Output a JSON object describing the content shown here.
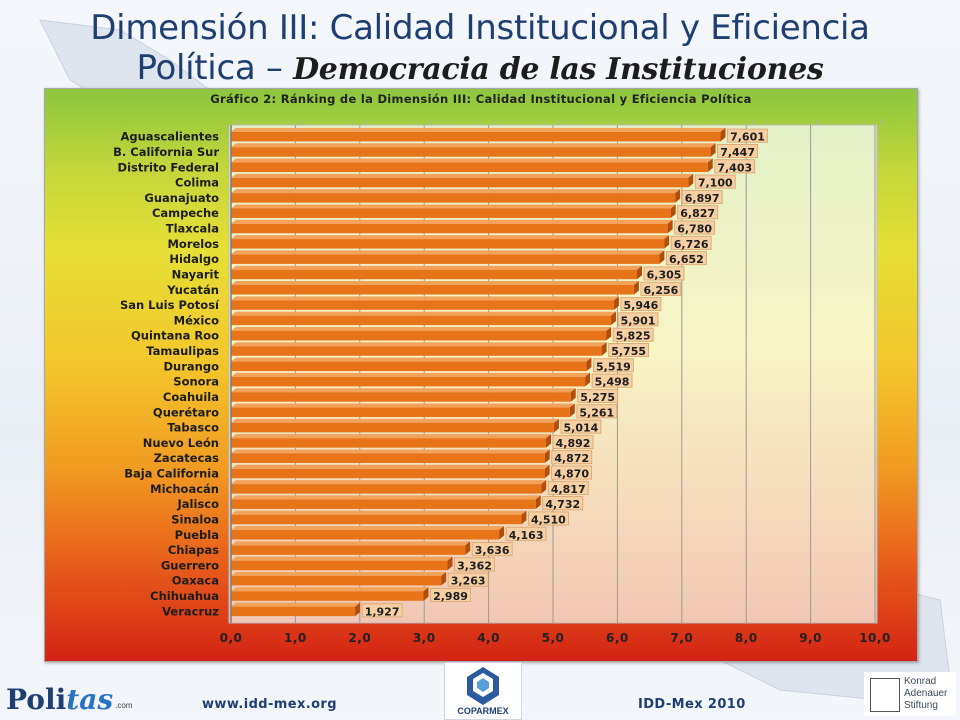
{
  "slide": {
    "title_line1": "Dimensión III: Calidad Institucional y Eficiencia",
    "title_line2_prefix": "Política – ",
    "title_line2_script": "Democracia de las Instituciones",
    "footer_url": "www.idd-mex.org",
    "footer_year": "IDD-Mex 2010"
  },
  "logos": {
    "left": {
      "main": "Poli",
      "accent": "tas",
      "suffix": ".com"
    },
    "center": {
      "name": "COPARMEX"
    },
    "right": {
      "line1": "Konrad",
      "line2": "Adenauer",
      "line3": "Stiftung"
    }
  },
  "colors": {
    "bar": "#e8741a",
    "bar_dark": "#b34d0c",
    "title": "#1f3f73"
  },
  "chart_data": {
    "type": "bar",
    "orientation": "horizontal",
    "title": "Gráfico 2: Ránking de la Dimensión III: Calidad Institucional y Eficiencia Política",
    "xlim": [
      0,
      10
    ],
    "x_ticks": [
      "0,0",
      "1,0",
      "2,0",
      "3,0",
      "4,0",
      "5,0",
      "6,0",
      "7,0",
      "8,0",
      "9,0",
      "10,0"
    ],
    "grid": "vertical",
    "categories": [
      "Aguascalientes",
      "B. California Sur",
      "Distrito Federal",
      "Colima",
      "Guanajuato",
      "Campeche",
      "Tlaxcala",
      "Morelos",
      "Hidalgo",
      "Nayarit",
      "Yucatán",
      "San Luis Potosí",
      "México",
      "Quintana Roo",
      "Tamaulipas",
      "Durango",
      "Sonora",
      "Coahuila",
      "Querétaro",
      "Tabasco",
      "Nuevo León",
      "Zacatecas",
      "Baja California",
      "Michoacán",
      "Jalisco",
      "Sinaloa",
      "Puebla",
      "Chiapas",
      "Guerrero",
      "Oaxaca",
      "Chihuahua",
      "Veracruz"
    ],
    "values": [
      7.601,
      7.447,
      7.403,
      7.1,
      6.897,
      6.827,
      6.78,
      6.726,
      6.652,
      6.305,
      6.256,
      5.946,
      5.901,
      5.825,
      5.755,
      5.519,
      5.498,
      5.275,
      5.261,
      5.014,
      4.892,
      4.872,
      4.87,
      4.817,
      4.732,
      4.51,
      4.163,
      3.636,
      3.362,
      3.263,
      2.989,
      1.927
    ],
    "value_labels": [
      "7,601",
      "7,447",
      "7,403",
      "7,100",
      "6,897",
      "6,827",
      "6,780",
      "6,726",
      "6,652",
      "6,305",
      "6,256",
      "5,946",
      "5,901",
      "5,825",
      "5,755",
      "5,519",
      "5,498",
      "5,275",
      "5,261",
      "5,014",
      "4,892",
      "4,872",
      "4,870",
      "4,817",
      "4,732",
      "4,510",
      "4,163",
      "3,636",
      "3,362",
      "3,263",
      "2,989",
      "1,927"
    ]
  }
}
